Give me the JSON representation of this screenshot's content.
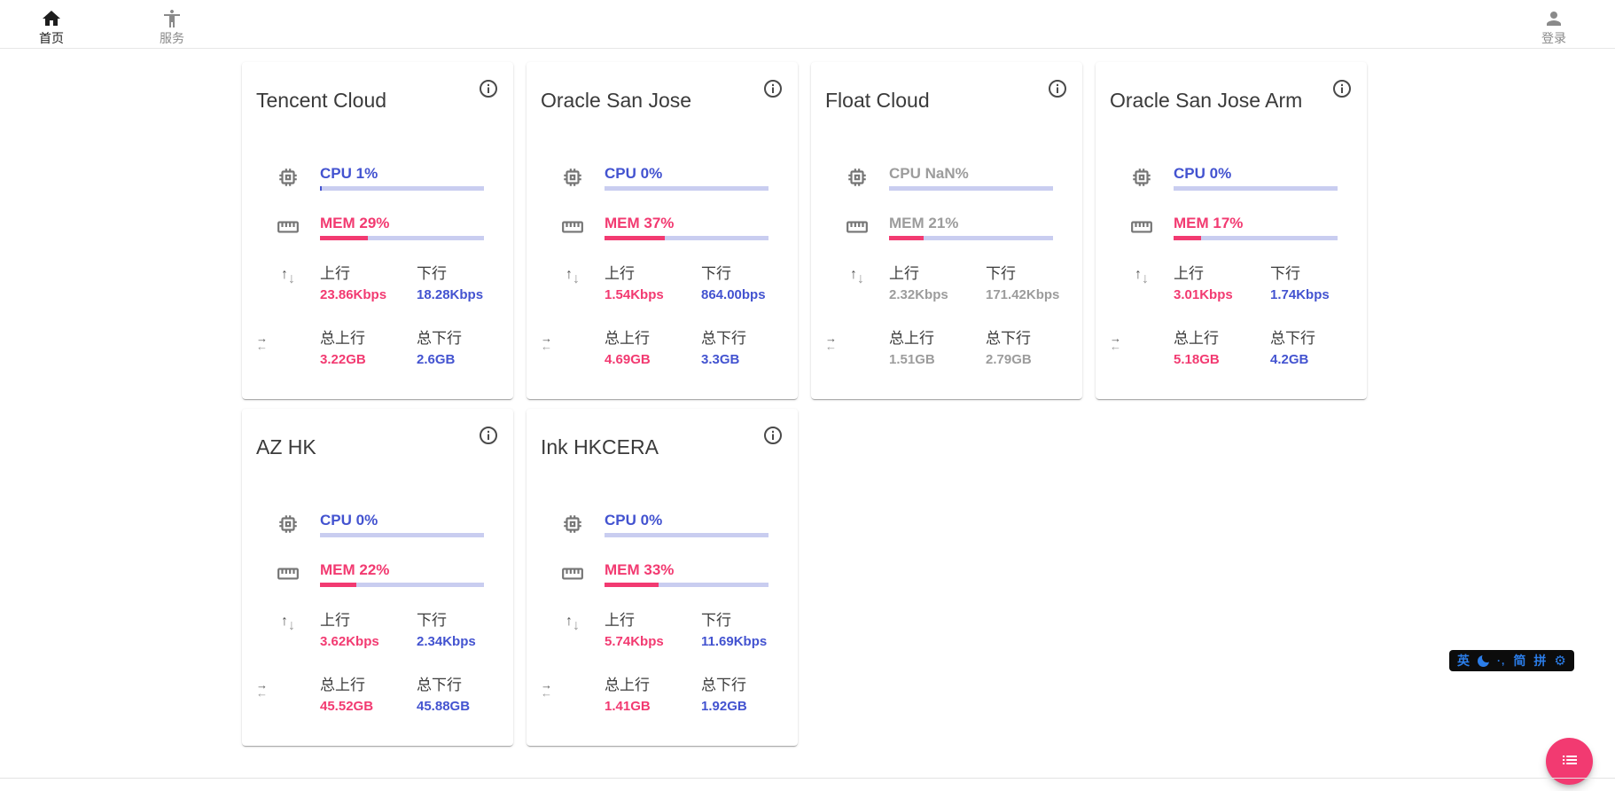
{
  "nav": {
    "home": {
      "label": "首页"
    },
    "services": {
      "label": "服务"
    },
    "login": {
      "label": "登录"
    }
  },
  "labels": {
    "up": "上行",
    "down": "下行",
    "total_up": "总上行",
    "total_down": "总下行"
  },
  "colors": {
    "accent_pink": "#f23a71",
    "accent_blue": "#4353d0",
    "progress_track": "#c9cdf0",
    "offline_text": "#9c9c9c",
    "ime_blue": "#2b7de9"
  },
  "servers": [
    {
      "name": "Tencent Cloud",
      "online": true,
      "cpu_text": "CPU 1%",
      "cpu_pct": 1,
      "mem_text": "MEM 29%",
      "mem_pct": 29,
      "up": "23.86Kbps",
      "down": "18.28Kbps",
      "total_up": "3.22GB",
      "total_down": "2.6GB"
    },
    {
      "name": "Oracle San Jose",
      "online": true,
      "cpu_text": "CPU 0%",
      "cpu_pct": 0,
      "mem_text": "MEM 37%",
      "mem_pct": 37,
      "up": "1.54Kbps",
      "down": "864.00bps",
      "total_up": "4.69GB",
      "total_down": "3.3GB"
    },
    {
      "name": "Float Cloud",
      "online": false,
      "cpu_text": "CPU NaN%",
      "cpu_pct": 0,
      "mem_text": "MEM 21%",
      "mem_pct": 21,
      "up": "2.32Kbps",
      "down": "171.42Kbps",
      "total_up": "1.51GB",
      "total_down": "2.79GB"
    },
    {
      "name": "Oracle San Jose Arm",
      "online": true,
      "cpu_text": "CPU 0%",
      "cpu_pct": 0,
      "mem_text": "MEM 17%",
      "mem_pct": 17,
      "up": "3.01Kbps",
      "down": "1.74Kbps",
      "total_up": "5.18GB",
      "total_down": "4.2GB"
    },
    {
      "name": "AZ HK",
      "online": true,
      "cpu_text": "CPU 0%",
      "cpu_pct": 0,
      "mem_text": "MEM 22%",
      "mem_pct": 22,
      "up": "3.62Kbps",
      "down": "2.34Kbps",
      "total_up": "45.52GB",
      "total_down": "45.88GB"
    },
    {
      "name": "Ink HKCERA",
      "online": true,
      "cpu_text": "CPU 0%",
      "cpu_pct": 0,
      "mem_text": "MEM 33%",
      "mem_pct": 33,
      "up": "5.74Kbps",
      "down": "11.69Kbps",
      "total_up": "1.41GB",
      "total_down": "1.92GB"
    }
  ],
  "ime": {
    "lang": "英",
    "punct": "·,",
    "simplified": "简",
    "pinyin": "拼",
    "gear_glyph": "⚙"
  },
  "icons": {
    "updown_up": "↑",
    "updown_down": "↓",
    "swap_right": "→",
    "swap_left": "←"
  }
}
